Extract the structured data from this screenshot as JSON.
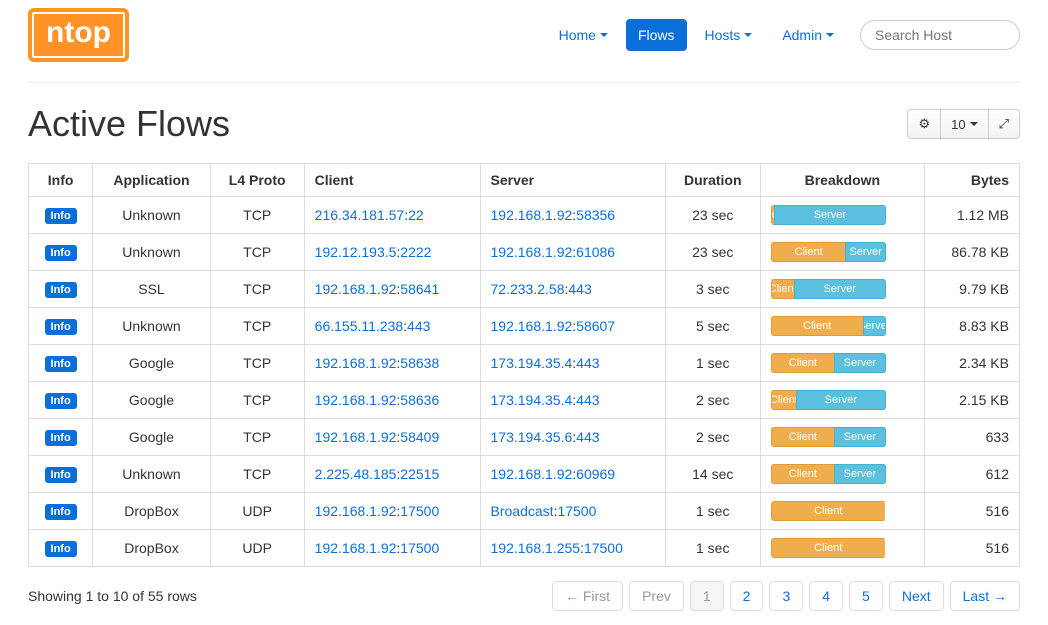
{
  "logo_text": "ntop",
  "nav": {
    "home": "Home",
    "flows": "Flows",
    "hosts": "Hosts",
    "admin": "Admin"
  },
  "search_placeholder": "Search Host",
  "page_title": "Active Flows",
  "toolbar": {
    "page_size": "10"
  },
  "columns": {
    "info": "Info",
    "application": "Application",
    "l4": "L4 Proto",
    "client": "Client",
    "server": "Server",
    "duration": "Duration",
    "breakdown": "Breakdown",
    "bytes": "Bytes"
  },
  "info_label": "Info",
  "breakdown_labels": {
    "client": "Client",
    "server": "Server"
  },
  "rows": [
    {
      "app": "Unknown",
      "l4": "TCP",
      "c_ip": "216.34.181.57",
      "c_port": "22",
      "s_ip": "192.168.1.92",
      "s_port": "58356",
      "dur": "23 sec",
      "client_pct": 3,
      "server_pct": 97,
      "bytes": "1.12 MB"
    },
    {
      "app": "Unknown",
      "l4": "TCP",
      "c_ip": "192.12.193.5",
      "c_port": "2222",
      "s_ip": "192.168.1.92",
      "s_port": "61086",
      "dur": "23 sec",
      "client_pct": 65,
      "server_pct": 35,
      "bytes": "86.78 KB"
    },
    {
      "app": "SSL",
      "l4": "TCP",
      "c_ip": "192.168.1.92",
      "c_port": "58641",
      "s_ip": "72.233.2.58",
      "s_port": "443",
      "dur": "3 sec",
      "client_pct": 20,
      "server_pct": 80,
      "bytes": "9.79 KB"
    },
    {
      "app": "Unknown",
      "l4": "TCP",
      "c_ip": "66.155.11.238",
      "c_port": "443",
      "s_ip": "192.168.1.92",
      "s_port": "58607",
      "dur": "5 sec",
      "client_pct": 80,
      "server_pct": 20,
      "bytes": "8.83 KB"
    },
    {
      "app": "Google",
      "l4": "TCP",
      "c_ip": "192.168.1.92",
      "c_port": "58638",
      "s_ip": "173.194.35.4",
      "s_port": "443",
      "dur": "1 sec",
      "client_pct": 55,
      "server_pct": 45,
      "bytes": "2.34 KB"
    },
    {
      "app": "Google",
      "l4": "TCP",
      "c_ip": "192.168.1.92",
      "c_port": "58636",
      "s_ip": "173.194.35.4",
      "s_port": "443",
      "dur": "2 sec",
      "client_pct": 22,
      "server_pct": 78,
      "bytes": "2.15 KB"
    },
    {
      "app": "Google",
      "l4": "TCP",
      "c_ip": "192.168.1.92",
      "c_port": "58409",
      "s_ip": "173.194.35.6",
      "s_port": "443",
      "dur": "2 sec",
      "client_pct": 55,
      "server_pct": 45,
      "bytes": "633"
    },
    {
      "app": "Unknown",
      "l4": "TCP",
      "c_ip": "2.225.48.185",
      "c_port": "22515",
      "s_ip": "192.168.1.92",
      "s_port": "60969",
      "dur": "14 sec",
      "client_pct": 55,
      "server_pct": 45,
      "bytes": "612"
    },
    {
      "app": "DropBox",
      "l4": "UDP",
      "c_ip": "192.168.1.92",
      "c_port": "17500",
      "s_ip": "Broadcast",
      "s_port": "17500",
      "dur": "1 sec",
      "client_pct": 100,
      "server_pct": 0,
      "bytes": "516"
    },
    {
      "app": "DropBox",
      "l4": "UDP",
      "c_ip": "192.168.1.92",
      "c_port": "17500",
      "s_ip": "192.168.1.255",
      "s_port": "17500",
      "dur": "1 sec",
      "client_pct": 100,
      "server_pct": 0,
      "bytes": "516"
    }
  ],
  "status": "Showing 1 to 10 of 55 rows",
  "pagination": {
    "first": "← First",
    "prev": "Prev",
    "pages": [
      "1",
      "2",
      "3",
      "4",
      "5"
    ],
    "next": "Next",
    "last": "Last →",
    "active_index": 0
  },
  "colors": {
    "accent": "#0b6fda",
    "logo_bg": "#ff9326",
    "client_bar": "#f0ad4e",
    "server_bar": "#5bc0de",
    "border": "#dddddd"
  }
}
